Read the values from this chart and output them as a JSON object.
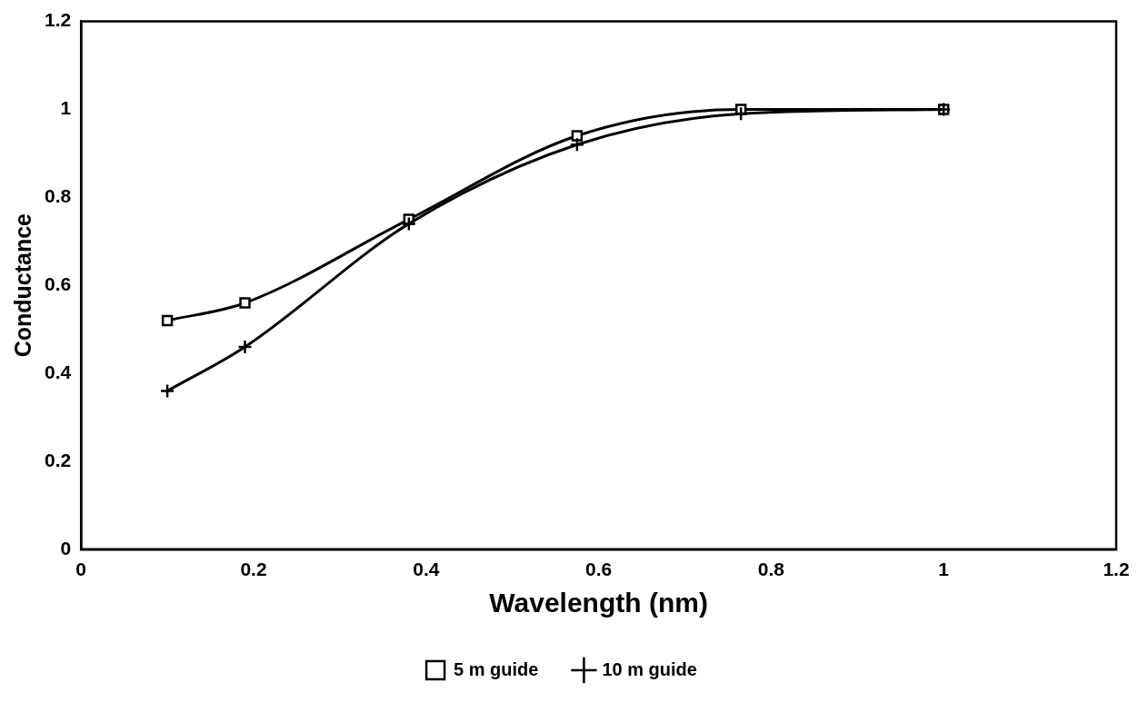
{
  "chart_data": {
    "type": "line",
    "xlabel": "Wavelength (nm)",
    "ylabel": "Conductance",
    "xlim": [
      0,
      1.2
    ],
    "xticks": [
      0,
      0.2,
      0.4,
      0.6,
      0.8,
      1,
      1.2
    ],
    "ylim": [
      0,
      1.2
    ],
    "yticks": [
      0,
      0.2,
      0.4,
      0.6,
      0.8,
      1,
      1.2
    ],
    "grid": false,
    "legend": "bottom",
    "line_style": "solid",
    "series": [
      {
        "name": "5 m guide",
        "color": "#000000",
        "marker": "square",
        "x": [
          0.1,
          0.19,
          0.38,
          0.575,
          0.765,
          1.0
        ],
        "values": [
          0.52,
          0.56,
          0.75,
          0.94,
          1.0,
          1.0
        ]
      },
      {
        "name": "10 m guide",
        "color": "#000000",
        "marker": "cross",
        "x": [
          0.1,
          0.19,
          0.38,
          0.575,
          0.765,
          1.0
        ],
        "values": [
          0.36,
          0.46,
          0.74,
          0.92,
          0.99,
          1.0
        ]
      }
    ]
  }
}
